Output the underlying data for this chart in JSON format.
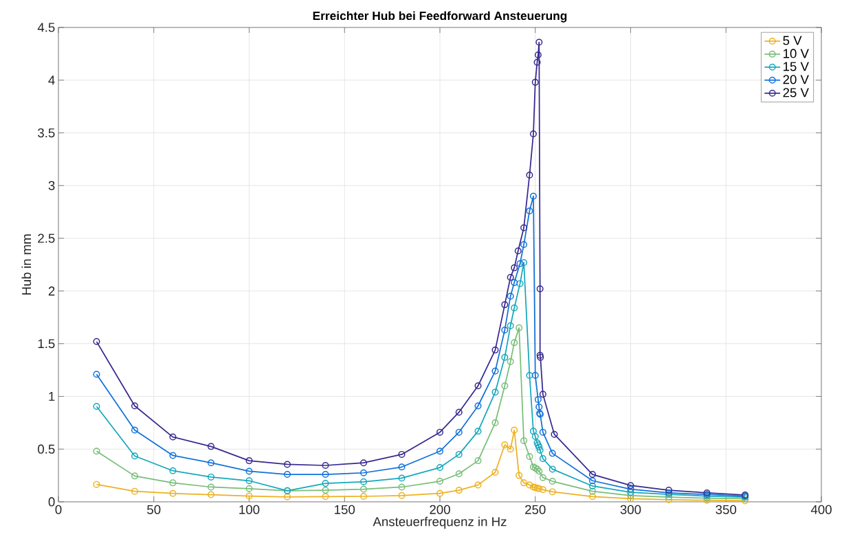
{
  "chart_data": {
    "type": "line",
    "title": "Erreichter Hub bei Feedforward Ansteuerung",
    "xlabel": "Ansteuerfrequenz in Hz",
    "ylabel": "Hub in mm",
    "xlim": [
      0,
      400
    ],
    "ylim": [
      0,
      4.5
    ],
    "xticks": [
      0,
      50,
      100,
      150,
      200,
      250,
      300,
      350,
      400
    ],
    "yticks": [
      0,
      0.5,
      1,
      1.5,
      2,
      2.5,
      3,
      3.5,
      4,
      4.5
    ],
    "grid": true,
    "legend": "top right",
    "marker": "circle",
    "line_style": "solid",
    "series": [
      {
        "name": "5 V",
        "color": "#edb120",
        "x": [
          20,
          40,
          60,
          80,
          100,
          120,
          140,
          160,
          180,
          200,
          210,
          220,
          229,
          234,
          237,
          239,
          241.5,
          244,
          247,
          249,
          250,
          251,
          252,
          254,
          259,
          280,
          300,
          320,
          340,
          360
        ],
        "values": [
          0.165,
          0.1,
          0.08,
          0.068,
          0.055,
          0.047,
          0.05,
          0.052,
          0.06,
          0.08,
          0.11,
          0.16,
          0.28,
          0.54,
          0.5,
          0.68,
          0.25,
          0.18,
          0.16,
          0.14,
          0.135,
          0.13,
          0.125,
          0.115,
          0.095,
          0.05,
          0.03,
          0.02,
          0.015,
          0.01
        ]
      },
      {
        "name": "10 V",
        "color": "#77be78",
        "x": [
          20,
          40,
          60,
          80,
          100,
          120,
          140,
          160,
          180,
          200,
          210,
          220,
          229,
          234,
          237,
          239,
          241.5,
          244,
          247,
          249,
          250,
          251,
          252,
          254,
          259,
          280,
          300,
          320,
          340,
          360
        ],
        "values": [
          0.48,
          0.245,
          0.18,
          0.14,
          0.125,
          0.105,
          0.11,
          0.12,
          0.14,
          0.195,
          0.265,
          0.39,
          0.75,
          1.1,
          1.33,
          1.51,
          1.65,
          0.58,
          0.43,
          0.33,
          0.32,
          0.31,
          0.29,
          0.23,
          0.195,
          0.1,
          0.06,
          0.045,
          0.035,
          0.03
        ]
      },
      {
        "name": "15 V",
        "color": "#14a7bd",
        "x": [
          20,
          40,
          60,
          80,
          100,
          120,
          140,
          160,
          180,
          200,
          210,
          220,
          229,
          234,
          237,
          239,
          242,
          244,
          247,
          249,
          250,
          251,
          251.5,
          252,
          252.5,
          254,
          259,
          280,
          300,
          320,
          340,
          360
        ],
        "values": [
          0.905,
          0.435,
          0.295,
          0.235,
          0.2,
          0.105,
          0.175,
          0.19,
          0.225,
          0.325,
          0.45,
          0.67,
          1.04,
          1.37,
          1.67,
          1.84,
          2.07,
          2.27,
          1.2,
          0.67,
          0.62,
          0.56,
          0.54,
          0.52,
          0.49,
          0.41,
          0.31,
          0.15,
          0.09,
          0.07,
          0.055,
          0.045
        ]
      },
      {
        "name": "20 V",
        "color": "#1071d9",
        "x": [
          20,
          40,
          60,
          80,
          100,
          120,
          140,
          160,
          180,
          200,
          210,
          220,
          229,
          234,
          237,
          239,
          242,
          244,
          247,
          249,
          250,
          251.5,
          252,
          252.3,
          252.6,
          254,
          259,
          280,
          300,
          320,
          340,
          360
        ],
        "values": [
          1.21,
          0.68,
          0.44,
          0.37,
          0.29,
          0.26,
          0.26,
          0.275,
          0.33,
          0.48,
          0.66,
          0.91,
          1.24,
          1.63,
          1.95,
          2.08,
          2.26,
          2.44,
          2.76,
          2.9,
          1.2,
          0.97,
          0.9,
          0.84,
          0.83,
          0.66,
          0.46,
          0.2,
          0.12,
          0.085,
          0.07,
          0.055
        ]
      },
      {
        "name": "25 V",
        "color": "#35288f",
        "x": [
          20,
          40,
          60,
          80,
          100,
          120,
          140,
          160,
          180,
          200,
          210,
          220,
          229,
          234,
          237,
          239,
          241,
          244,
          247,
          249,
          250,
          251,
          251.5,
          252,
          252.5,
          252.5,
          252.7,
          254,
          260,
          280,
          300,
          320,
          340,
          360
        ],
        "values": [
          1.52,
          0.91,
          0.615,
          0.525,
          0.39,
          0.355,
          0.345,
          0.37,
          0.45,
          0.66,
          0.85,
          1.1,
          1.44,
          1.87,
          2.13,
          2.22,
          2.38,
          2.6,
          3.1,
          3.49,
          3.98,
          4.17,
          4.24,
          4.36,
          2.02,
          1.39,
          1.37,
          1.02,
          0.64,
          0.26,
          0.155,
          0.11,
          0.085,
          0.065
        ]
      }
    ]
  }
}
